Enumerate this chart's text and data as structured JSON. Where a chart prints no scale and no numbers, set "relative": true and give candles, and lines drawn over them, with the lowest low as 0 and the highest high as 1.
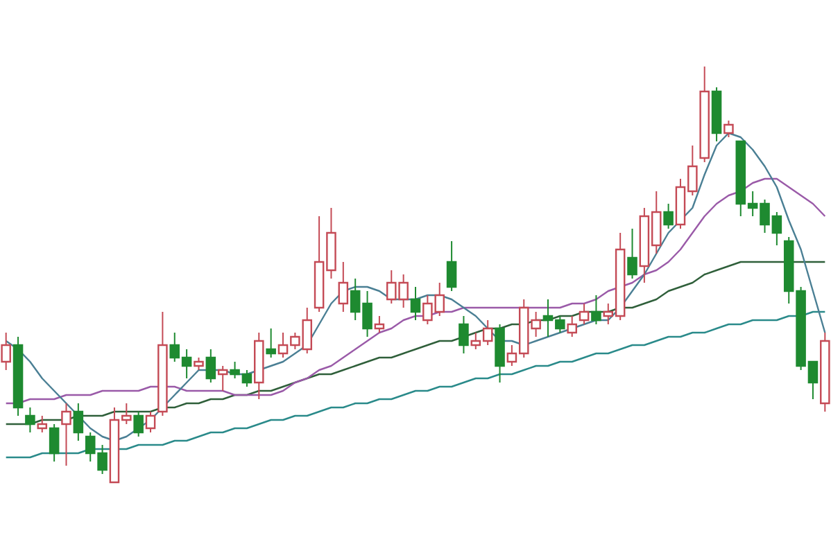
{
  "chart_data": {
    "type": "candlestick",
    "relative": true,
    "categories": [
      null,
      null,
      null,
      null,
      null,
      null,
      null,
      null,
      null,
      null,
      null,
      null,
      null,
      null,
      null,
      null,
      null,
      null,
      null,
      null,
      null,
      null,
      null,
      null,
      null,
      null,
      null,
      null,
      null,
      null,
      null,
      null,
      null,
      null,
      null,
      null,
      null,
      null,
      null,
      null,
      null,
      null,
      null,
      null,
      null,
      null,
      null,
      null,
      null,
      null,
      null,
      null,
      null,
      null,
      null,
      null,
      null,
      null,
      null,
      null,
      null,
      null,
      null,
      null,
      null,
      null,
      null,
      null,
      null
    ],
    "ohlc": [
      [
        0.29,
        0.36,
        0.27,
        0.33
      ],
      [
        0.33,
        0.35,
        0.16,
        0.18
      ],
      [
        0.16,
        0.18,
        0.12,
        0.14
      ],
      [
        0.13,
        0.16,
        0.12,
        0.14
      ],
      [
        0.13,
        0.14,
        0.05,
        0.07
      ],
      [
        0.14,
        0.19,
        0.04,
        0.17
      ],
      [
        0.17,
        0.19,
        0.1,
        0.12
      ],
      [
        0.11,
        0.12,
        0.05,
        0.07
      ],
      [
        0.07,
        0.09,
        0.02,
        0.03
      ],
      [
        0,
        0.18,
        0,
        0.15
      ],
      [
        0.15,
        0.19,
        0.14,
        0.16
      ],
      [
        0.16,
        0.17,
        0.11,
        0.12
      ],
      [
        0.13,
        0.17,
        0.12,
        0.16
      ],
      [
        0.17,
        0.41,
        0.16,
        0.33
      ],
      [
        0.33,
        0.36,
        0.29,
        0.3
      ],
      [
        0.3,
        0.32,
        0.25,
        0.28
      ],
      [
        0.28,
        0.3,
        0.27,
        0.29
      ],
      [
        0.3,
        0.32,
        0.24,
        0.25
      ],
      [
        0.26,
        0.28,
        0.22,
        0.27
      ],
      [
        0.27,
        0.29,
        0.25,
        0.26
      ],
      [
        0.26,
        0.27,
        0.23,
        0.24
      ],
      [
        0.24,
        0.36,
        0.2,
        0.34
      ],
      [
        0.32,
        0.37,
        0.3,
        0.31
      ],
      [
        0.31,
        0.36,
        0.3,
        0.33
      ],
      [
        0.33,
        0.36,
        0.32,
        0.35
      ],
      [
        0.32,
        0.42,
        0.31,
        0.39
      ],
      [
        0.42,
        0.64,
        0.41,
        0.53
      ],
      [
        0.51,
        0.66,
        0.49,
        0.6
      ],
      [
        0.43,
        0.53,
        0.41,
        0.48
      ],
      [
        0.46,
        0.49,
        0.39,
        0.41
      ],
      [
        0.43,
        0.46,
        0.35,
        0.37
      ],
      [
        0.37,
        0.4,
        0.36,
        0.38
      ],
      [
        0.44,
        0.51,
        0.43,
        0.48
      ],
      [
        0.44,
        0.5,
        0.42,
        0.48
      ],
      [
        0.44,
        0.47,
        0.39,
        0.41
      ],
      [
        0.39,
        0.45,
        0.38,
        0.43
      ],
      [
        0.41,
        0.48,
        0.4,
        0.45
      ],
      [
        0.53,
        0.58,
        0.46,
        0.47
      ],
      [
        0.38,
        0.4,
        0.31,
        0.33
      ],
      [
        0.33,
        0.36,
        0.32,
        0.34
      ],
      [
        0.34,
        0.39,
        0.33,
        0.37
      ],
      [
        0.37,
        0.38,
        0.24,
        0.28
      ],
      [
        0.29,
        0.33,
        0.28,
        0.31
      ],
      [
        0.31,
        0.44,
        0.3,
        0.42
      ],
      [
        0.37,
        0.41,
        0.35,
        0.39
      ],
      [
        0.4,
        0.44,
        0.35,
        0.39
      ],
      [
        0.39,
        0.4,
        0.36,
        0.37
      ],
      [
        0.36,
        0.4,
        0.35,
        0.38
      ],
      [
        0.39,
        0.43,
        0.38,
        0.41
      ],
      [
        0.41,
        0.45,
        0.38,
        0.39
      ],
      [
        0.4,
        0.43,
        0.38,
        0.41
      ],
      [
        0.4,
        0.6,
        0.39,
        0.56
      ],
      [
        0.54,
        0.61,
        0.49,
        0.5
      ],
      [
        0.52,
        0.66,
        0.48,
        0.64
      ],
      [
        0.57,
        0.7,
        0.55,
        0.65
      ],
      [
        0.65,
        0.67,
        0.61,
        0.62
      ],
      [
        0.62,
        0.73,
        0.61,
        0.71
      ],
      [
        0.7,
        0.81,
        0.69,
        0.76
      ],
      [
        0.78,
        1,
        0.77,
        0.94
      ],
      [
        0.94,
        0.95,
        0.82,
        0.84
      ],
      [
        0.84,
        0.87,
        0.83,
        0.86
      ],
      [
        0.82,
        0.82,
        0.64,
        0.67
      ],
      [
        0.67,
        0.7,
        0.64,
        0.66
      ],
      [
        0.67,
        0.68,
        0.6,
        0.62
      ],
      [
        0.64,
        0.65,
        0.57,
        0.6
      ],
      [
        0.58,
        0.59,
        0.43,
        0.46
      ],
      [
        0.46,
        0.47,
        0.27,
        0.28
      ],
      [
        0.29,
        0.29,
        0.2,
        0.24
      ],
      [
        0.19,
        0.36,
        0.17,
        0.34
      ]
    ],
    "colors": [
      "#c44a55",
      "#1e8a30",
      "#1e8a30",
      "#c44a55",
      "#1e8a30",
      "#c44a55",
      "#1e8a30",
      "#1e8a30",
      "#1e8a30",
      "#c44a55",
      "#c44a55",
      "#1e8a30",
      "#c44a55",
      "#c44a55",
      "#1e8a30",
      "#1e8a30",
      "#c44a55",
      "#1e8a30",
      "#c44a55",
      "#1e8a30",
      "#1e8a30",
      "#c44a55",
      "#1e8a30",
      "#c44a55",
      "#c44a55",
      "#c44a55",
      "#c44a55",
      "#c44a55",
      "#c44a55",
      "#1e8a30",
      "#1e8a30",
      "#c44a55",
      "#c44a55",
      "#c44a55",
      "#1e8a30",
      "#c44a55",
      "#c44a55",
      "#1e8a30",
      "#1e8a30",
      "#c44a55",
      "#c44a55",
      "#1e8a30",
      "#c44a55",
      "#c44a55",
      "#c44a55",
      "#1e8a30",
      "#1e8a30",
      "#c44a55",
      "#c44a55",
      "#1e8a30",
      "#c44a55",
      "#c44a55",
      "#1e8a30",
      "#c44a55",
      "#c44a55",
      "#1e8a30",
      "#c44a55",
      "#c44a55",
      "#c44a55",
      "#1e8a30",
      "#c44a55",
      "#1e8a30",
      "#1e8a30",
      "#1e8a30",
      "#1e8a30",
      "#1e8a30",
      "#1e8a30",
      "#1e8a30",
      "#c44a55"
    ],
    "series": [
      {
        "type": "line",
        "color": "#2a8a8a",
        "values": [
          0.06,
          0.06,
          0.06,
          0.07,
          0.07,
          0.07,
          0.07,
          0.08,
          0.08,
          0.08,
          0.08,
          0.09,
          0.09,
          0.09,
          0.1,
          0.1,
          0.11,
          0.12,
          0.12,
          0.13,
          0.13,
          0.14,
          0.15,
          0.15,
          0.16,
          0.16,
          0.17,
          0.18,
          0.18,
          0.19,
          0.19,
          0.2,
          0.2,
          0.21,
          0.22,
          0.22,
          0.23,
          0.23,
          0.24,
          0.25,
          0.25,
          0.26,
          0.26,
          0.27,
          0.28,
          0.28,
          0.29,
          0.29,
          0.3,
          0.31,
          0.31,
          0.32,
          0.33,
          0.33,
          0.34,
          0.35,
          0.35,
          0.36,
          0.36,
          0.37,
          0.38,
          0.38,
          0.39,
          0.39,
          0.39,
          0.4,
          0.4,
          0.41,
          0.41
        ]
      },
      {
        "type": "line",
        "color": "#2f5f3a",
        "values": [
          0.14,
          0.14,
          0.14,
          0.15,
          0.15,
          0.15,
          0.16,
          0.16,
          0.16,
          0.17,
          0.17,
          0.17,
          0.17,
          0.18,
          0.18,
          0.19,
          0.19,
          0.2,
          0.2,
          0.21,
          0.21,
          0.22,
          0.22,
          0.23,
          0.24,
          0.25,
          0.26,
          0.26,
          0.27,
          0.28,
          0.29,
          0.3,
          0.3,
          0.31,
          0.32,
          0.33,
          0.34,
          0.34,
          0.35,
          0.36,
          0.37,
          0.37,
          0.38,
          0.38,
          0.39,
          0.39,
          0.4,
          0.4,
          0.41,
          0.41,
          0.41,
          0.42,
          0.42,
          0.43,
          0.44,
          0.46,
          0.47,
          0.48,
          0.5,
          0.51,
          0.52,
          0.53,
          0.53,
          0.53,
          0.53,
          0.53,
          0.53,
          0.53,
          0.53
        ]
      },
      {
        "type": "line",
        "color": "#9a5aa8",
        "values": [
          0.19,
          0.19,
          0.2,
          0.2,
          0.2,
          0.21,
          0.21,
          0.21,
          0.22,
          0.22,
          0.22,
          0.22,
          0.23,
          0.23,
          0.23,
          0.22,
          0.22,
          0.22,
          0.22,
          0.21,
          0.21,
          0.21,
          0.21,
          0.22,
          0.24,
          0.25,
          0.27,
          0.28,
          0.3,
          0.32,
          0.34,
          0.36,
          0.37,
          0.39,
          0.4,
          0.4,
          0.41,
          0.41,
          0.42,
          0.42,
          0.42,
          0.42,
          0.42,
          0.42,
          0.42,
          0.42,
          0.42,
          0.43,
          0.43,
          0.44,
          0.46,
          0.47,
          0.48,
          0.5,
          0.51,
          0.53,
          0.56,
          0.6,
          0.64,
          0.67,
          0.69,
          0.7,
          0.72,
          0.73,
          0.73,
          0.71,
          0.69,
          0.67,
          0.64
        ]
      },
      {
        "type": "line",
        "color": "#4a7f94",
        "values": [
          0.34,
          0.32,
          0.29,
          0.25,
          0.22,
          0.19,
          0.16,
          0.13,
          0.11,
          0.1,
          0.11,
          0.13,
          0.15,
          0.18,
          0.21,
          0.24,
          0.27,
          0.27,
          0.27,
          0.26,
          0.26,
          0.27,
          0.28,
          0.29,
          0.31,
          0.33,
          0.38,
          0.43,
          0.46,
          0.47,
          0.47,
          0.46,
          0.44,
          0.44,
          0.44,
          0.45,
          0.45,
          0.44,
          0.42,
          0.4,
          0.37,
          0.34,
          0.34,
          0.33,
          0.34,
          0.35,
          0.36,
          0.37,
          0.38,
          0.39,
          0.39,
          0.42,
          0.46,
          0.5,
          0.55,
          0.6,
          0.63,
          0.66,
          0.74,
          0.81,
          0.84,
          0.83,
          0.8,
          0.76,
          0.71,
          0.63,
          0.56,
          0.46,
          0.36
        ]
      }
    ]
  }
}
